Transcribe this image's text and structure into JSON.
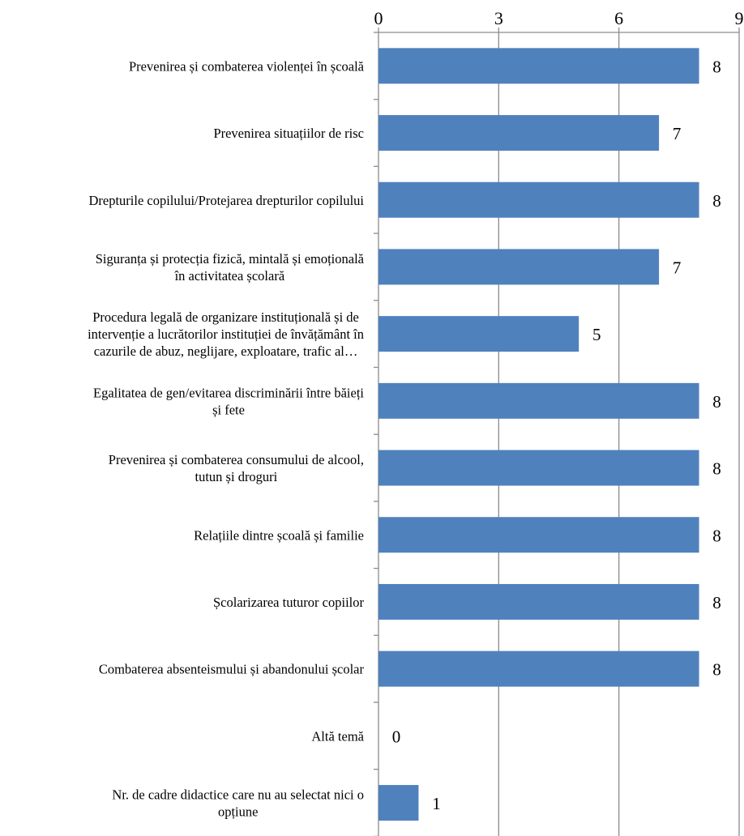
{
  "chart_data": {
    "type": "bar",
    "orientation": "horizontal",
    "xlim": [
      0,
      9
    ],
    "ticks": [
      0,
      3,
      6,
      9
    ],
    "axis_position": "top",
    "grid": true,
    "bar_color": "#4F81BD",
    "categories": [
      {
        "label": "Prevenirea și combaterea violenței în școală",
        "lines": [
          "Prevenirea și combaterea violenței în școală"
        ],
        "value": 8
      },
      {
        "label": "Prevenirea situațiilor de risc",
        "lines": [
          "Prevenirea situațiilor de risc"
        ],
        "value": 7
      },
      {
        "label": "Drepturile copilului/Protejarea drepturilor copilului",
        "lines": [
          "Drepturile copilului/Protejarea drepturilor copilului"
        ],
        "value": 8
      },
      {
        "label": "Siguranța și protecția fizică, mintală și emoțională în activitatea școlară",
        "lines": [
          "Siguranța și protecția fizică, mintală și emoțională",
          "în activitatea școlară"
        ],
        "value": 7
      },
      {
        "label": "Procedura legală de organizare instituțională și de intervenție a lucrătorilor instituției de învățământ în cazurile de abuz, neglijare, exploatare, trafic al…",
        "lines": [
          "Procedura legală de organizare instituțională și de",
          "intervenție a lucrătorilor instituției de învățământ în",
          "cazurile de abuz, neglijare, exploatare, trafic al…"
        ],
        "value": 5
      },
      {
        "label": "Egalitatea de gen/evitarea discriminării între băieți și fete",
        "lines": [
          "Egalitatea de gen/evitarea discriminării între băieți",
          "și fete"
        ],
        "value": 8
      },
      {
        "label": "Prevenirea și combaterea consumului de alcool, tutun și droguri",
        "lines": [
          "Prevenirea și combaterea consumului de alcool,",
          "tutun și droguri"
        ],
        "value": 8
      },
      {
        "label": "Relațiile dintre școală și familie",
        "lines": [
          "Relațiile dintre școală și familie"
        ],
        "value": 8
      },
      {
        "label": "Școlarizarea tuturor copiilor",
        "lines": [
          "Școlarizarea tuturor copiilor"
        ],
        "value": 8
      },
      {
        "label": "Combaterea absenteismului și  abandonului școlar",
        "lines": [
          "Combaterea absenteismului și  abandonului școlar"
        ],
        "value": 8
      },
      {
        "label": "Altă temă",
        "lines": [
          "Altă temă"
        ],
        "value": 0
      },
      {
        "label": "Nr. de cadre didactice care nu au selectat nici o opțiune",
        "lines": [
          "Nr. de cadre didactice care nu au selectat nici o",
          "opțiune"
        ],
        "value": 1
      }
    ]
  }
}
